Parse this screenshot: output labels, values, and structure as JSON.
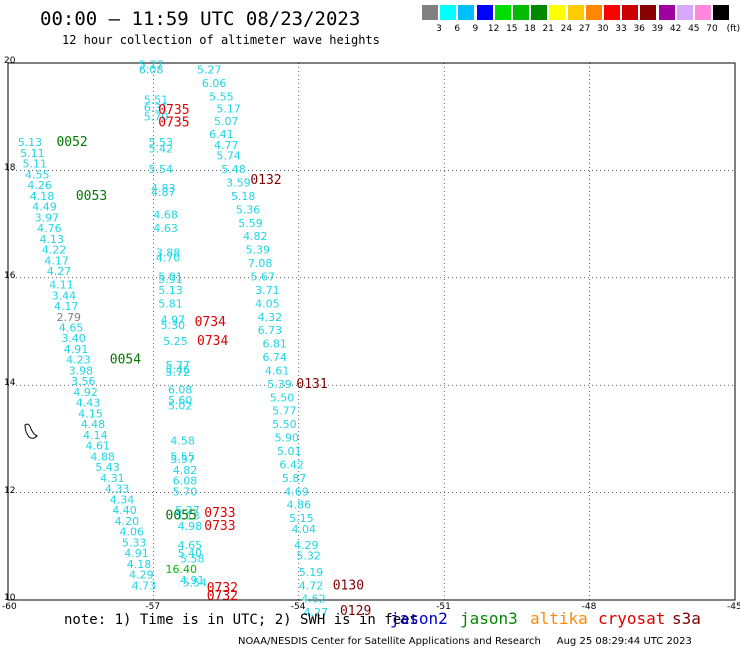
{
  "header": {
    "title": "00:00 – 11:59 UTC 08/23/2023",
    "subtitle": "12 hour collection of altimeter wave heights"
  },
  "color_scale": {
    "unit": "(ft)",
    "bins": [
      {
        "label": "3",
        "color": "#808080"
      },
      {
        "label": "6",
        "color": "#00ffff"
      },
      {
        "label": "9",
        "color": "#00bfff"
      },
      {
        "label": "12",
        "color": "#0000ff"
      },
      {
        "label": "15",
        "color": "#00dd00"
      },
      {
        "label": "18",
        "color": "#00bb00"
      },
      {
        "label": "21",
        "color": "#008800"
      },
      {
        "label": "24",
        "color": "#ffff00"
      },
      {
        "label": "27",
        "color": "#ffcc00"
      },
      {
        "label": "30",
        "color": "#ff8800"
      },
      {
        "label": "33",
        "color": "#ff0000"
      },
      {
        "label": "36",
        "color": "#cc0000"
      },
      {
        "label": "39",
        "color": "#880000"
      },
      {
        "label": "42",
        "color": "#a000a0"
      },
      {
        "label": "45",
        "color": "#d8a8ff"
      },
      {
        "label": "70",
        "color": "#ff88dd"
      },
      {
        "label": "",
        "color": "#000000"
      }
    ]
  },
  "map": {
    "lon_range": [
      -60,
      -45
    ],
    "lat_range": [
      10,
      20
    ],
    "x_ticks": [
      "-60",
      "-57",
      "-54",
      "-51",
      "-48",
      "-45"
    ],
    "y_ticks": [
      "20",
      "18",
      "16",
      "14",
      "12",
      "10"
    ]
  },
  "chart_data": {
    "type": "scatter",
    "x_unit": "degrees longitude",
    "y_unit": "degrees latitude",
    "point_colors": {
      "cyan": "#1fd6e6",
      "gray": "#808080"
    },
    "points": [
      {
        "lon": -57.3,
        "lat": 19.9,
        "v": "5.77",
        "c": "cyan"
      },
      {
        "lon": -57.3,
        "lat": 19.8,
        "v": "6.08",
        "c": "cyan"
      },
      {
        "lon": -56.1,
        "lat": 19.8,
        "v": "5.27",
        "c": "cyan"
      },
      {
        "lon": -56.0,
        "lat": 19.55,
        "v": "6.06",
        "c": "cyan"
      },
      {
        "lon": -55.85,
        "lat": 19.3,
        "v": "5.55",
        "c": "cyan"
      },
      {
        "lon": -57.2,
        "lat": 19.25,
        "v": "5.51",
        "c": "cyan"
      },
      {
        "lon": -57.2,
        "lat": 19.1,
        "v": "6.31",
        "c": "cyan"
      },
      {
        "lon": -55.7,
        "lat": 19.08,
        "v": "5.17",
        "c": "cyan"
      },
      {
        "lon": -57.2,
        "lat": 18.93,
        "v": "5.70",
        "c": "cyan"
      },
      {
        "lon": -55.75,
        "lat": 18.85,
        "v": "5.07",
        "c": "cyan"
      },
      {
        "lon": -55.85,
        "lat": 18.6,
        "v": "6.41",
        "c": "cyan"
      },
      {
        "lon": -57.1,
        "lat": 18.45,
        "v": "5.53",
        "c": "cyan"
      },
      {
        "lon": -57.1,
        "lat": 18.33,
        "v": "5.42",
        "c": "cyan"
      },
      {
        "lon": -55.75,
        "lat": 18.4,
        "v": "4.77",
        "c": "cyan"
      },
      {
        "lon": -55.7,
        "lat": 18.2,
        "v": "5.74",
        "c": "cyan"
      },
      {
        "lon": -57.1,
        "lat": 17.95,
        "v": "5.54",
        "c": "cyan"
      },
      {
        "lon": -55.6,
        "lat": 17.95,
        "v": "5.48",
        "c": "cyan"
      },
      {
        "lon": -55.5,
        "lat": 17.7,
        "v": "3.59",
        "c": "cyan"
      },
      {
        "lon": -57.05,
        "lat": 17.6,
        "v": "4.83",
        "c": "cyan"
      },
      {
        "lon": -57.05,
        "lat": 17.52,
        "v": "4.87",
        "c": "cyan"
      },
      {
        "lon": -55.4,
        "lat": 17.45,
        "v": "5.18",
        "c": "cyan"
      },
      {
        "lon": -55.3,
        "lat": 17.2,
        "v": "5.36",
        "c": "cyan"
      },
      {
        "lon": -57.0,
        "lat": 17.1,
        "v": "4.68",
        "c": "cyan"
      },
      {
        "lon": -55.25,
        "lat": 16.95,
        "v": "5.59",
        "c": "cyan"
      },
      {
        "lon": -57.0,
        "lat": 16.85,
        "v": "4.63",
        "c": "cyan"
      },
      {
        "lon": -55.15,
        "lat": 16.7,
        "v": "4.82",
        "c": "cyan"
      },
      {
        "lon": -56.95,
        "lat": 16.4,
        "v": "3.88",
        "c": "cyan"
      },
      {
        "lon": -55.1,
        "lat": 16.45,
        "v": "5.39",
        "c": "cyan"
      },
      {
        "lon": -56.95,
        "lat": 16.3,
        "v": "4.70",
        "c": "cyan"
      },
      {
        "lon": -55.05,
        "lat": 16.2,
        "v": "7.08",
        "c": "cyan"
      },
      {
        "lon": -56.9,
        "lat": 15.95,
        "v": "5.01",
        "c": "cyan"
      },
      {
        "lon": -56.9,
        "lat": 15.9,
        "v": "5.91",
        "c": "cyan"
      },
      {
        "lon": -55.0,
        "lat": 15.95,
        "v": "5.67",
        "c": "cyan"
      },
      {
        "lon": -56.9,
        "lat": 15.7,
        "v": "5.13",
        "c": "cyan"
      },
      {
        "lon": -54.9,
        "lat": 15.7,
        "v": "3.71",
        "c": "cyan"
      },
      {
        "lon": -56.9,
        "lat": 15.45,
        "v": "5.81",
        "c": "cyan"
      },
      {
        "lon": -54.9,
        "lat": 15.45,
        "v": "4.05",
        "c": "cyan"
      },
      {
        "lon": -56.85,
        "lat": 15.15,
        "v": "4.97",
        "c": "cyan"
      },
      {
        "lon": -54.85,
        "lat": 15.2,
        "v": "4.32",
        "c": "cyan"
      },
      {
        "lon": -56.85,
        "lat": 15.05,
        "v": "5.30",
        "c": "cyan"
      },
      {
        "lon": -54.85,
        "lat": 14.95,
        "v": "6.73",
        "c": "cyan"
      },
      {
        "lon": -56.8,
        "lat": 14.75,
        "v": "5.25",
        "c": "cyan"
      },
      {
        "lon": -54.75,
        "lat": 14.7,
        "v": "6.81",
        "c": "cyan"
      },
      {
        "lon": -54.75,
        "lat": 14.45,
        "v": "6.74",
        "c": "cyan"
      },
      {
        "lon": -56.75,
        "lat": 14.3,
        "v": "5.77",
        "c": "cyan"
      },
      {
        "lon": -56.75,
        "lat": 14.22,
        "v": "5.46",
        "c": "cyan"
      },
      {
        "lon": -56.75,
        "lat": 14.17,
        "v": "5.72",
        "c": "cyan"
      },
      {
        "lon": -54.7,
        "lat": 14.2,
        "v": "4.61",
        "c": "cyan"
      },
      {
        "lon": -54.65,
        "lat": 13.95,
        "v": "5.39",
        "c": "cyan"
      },
      {
        "lon": -56.7,
        "lat": 13.85,
        "v": "6.08",
        "c": "cyan"
      },
      {
        "lon": -54.6,
        "lat": 13.7,
        "v": "5.50",
        "c": "cyan"
      },
      {
        "lon": -56.7,
        "lat": 13.65,
        "v": "5.60",
        "c": "cyan"
      },
      {
        "lon": -56.7,
        "lat": 13.55,
        "v": "5.02",
        "c": "cyan"
      },
      {
        "lon": -54.55,
        "lat": 13.45,
        "v": "5.77",
        "c": "cyan"
      },
      {
        "lon": -54.55,
        "lat": 13.2,
        "v": "5.50",
        "c": "cyan"
      },
      {
        "lon": -54.5,
        "lat": 12.95,
        "v": "5.90",
        "c": "cyan"
      },
      {
        "lon": -56.65,
        "lat": 12.9,
        "v": "4.58",
        "c": "cyan"
      },
      {
        "lon": -54.45,
        "lat": 12.7,
        "v": "5.01",
        "c": "cyan"
      },
      {
        "lon": -56.65,
        "lat": 12.6,
        "v": "5.55",
        "c": "cyan"
      },
      {
        "lon": -56.65,
        "lat": 12.55,
        "v": "5.57",
        "c": "cyan"
      },
      {
        "lon": -54.4,
        "lat": 12.45,
        "v": "6.42",
        "c": "cyan"
      },
      {
        "lon": -56.6,
        "lat": 12.35,
        "v": "4.82",
        "c": "cyan"
      },
      {
        "lon": -54.35,
        "lat": 12.2,
        "v": "5.87",
        "c": "cyan"
      },
      {
        "lon": -56.6,
        "lat": 12.15,
        "v": "6.08",
        "c": "cyan"
      },
      {
        "lon": -56.6,
        "lat": 11.95,
        "v": "5.70",
        "c": "cyan"
      },
      {
        "lon": -54.3,
        "lat": 11.95,
        "v": "4.69",
        "c": "cyan"
      },
      {
        "lon": -54.25,
        "lat": 11.7,
        "v": "4.86",
        "c": "cyan"
      },
      {
        "lon": -56.55,
        "lat": 11.6,
        "v": "5.27",
        "c": "cyan"
      },
      {
        "lon": -56.55,
        "lat": 11.5,
        "v": "5.13",
        "c": "cyan"
      },
      {
        "lon": -54.2,
        "lat": 11.45,
        "v": "5.15",
        "c": "cyan"
      },
      {
        "lon": -56.5,
        "lat": 11.3,
        "v": "4.98",
        "c": "cyan"
      },
      {
        "lon": -54.15,
        "lat": 11.25,
        "v": "4.04",
        "c": "cyan"
      },
      {
        "lon": -54.1,
        "lat": 10.95,
        "v": "4.29",
        "c": "cyan"
      },
      {
        "lon": -56.5,
        "lat": 10.95,
        "v": "4.65",
        "c": "cyan"
      },
      {
        "lon": -56.5,
        "lat": 10.8,
        "v": "5.40",
        "c": "cyan"
      },
      {
        "lon": -54.05,
        "lat": 10.75,
        "v": "5.32",
        "c": "cyan"
      },
      {
        "lon": -56.45,
        "lat": 10.7,
        "v": "5.58",
        "c": "cyan"
      },
      {
        "lon": -54.0,
        "lat": 10.45,
        "v": "5.19",
        "c": "cyan"
      },
      {
        "lon": -54.0,
        "lat": 10.2,
        "v": "4.72",
        "c": "cyan"
      },
      {
        "lon": -56.45,
        "lat": 10.3,
        "v": "4.91",
        "c": "cyan"
      },
      {
        "lon": -56.4,
        "lat": 10.25,
        "v": "5.54",
        "c": "cyan"
      },
      {
        "lon": -53.95,
        "lat": 9.95,
        "v": "4.62",
        "c": "cyan"
      },
      {
        "lon": -53.9,
        "lat": 9.7,
        "v": "4.27",
        "c": "cyan"
      },
      {
        "lon": -59.8,
        "lat": 18.45,
        "v": "5.13",
        "c": "cyan"
      },
      {
        "lon": -59.75,
        "lat": 18.25,
        "v": "5.11",
        "c": "cyan"
      },
      {
        "lon": -59.7,
        "lat": 18.05,
        "v": "5.11",
        "c": "cyan"
      },
      {
        "lon": -59.65,
        "lat": 17.85,
        "v": "4.55",
        "c": "cyan"
      },
      {
        "lon": -59.6,
        "lat": 17.65,
        "v": "4.26",
        "c": "cyan"
      },
      {
        "lon": -59.55,
        "lat": 17.45,
        "v": "4.18",
        "c": "cyan"
      },
      {
        "lon": -59.5,
        "lat": 17.25,
        "v": "4.49",
        "c": "cyan"
      },
      {
        "lon": -59.45,
        "lat": 17.05,
        "v": "3.97",
        "c": "cyan"
      },
      {
        "lon": -59.4,
        "lat": 16.85,
        "v": "4.76",
        "c": "cyan"
      },
      {
        "lon": -59.35,
        "lat": 16.65,
        "v": "4.13",
        "c": "cyan"
      },
      {
        "lon": -59.3,
        "lat": 16.45,
        "v": "4.22",
        "c": "cyan"
      },
      {
        "lon": -59.25,
        "lat": 16.25,
        "v": "4.17",
        "c": "cyan"
      },
      {
        "lon": -59.2,
        "lat": 16.05,
        "v": "4.27",
        "c": "cyan"
      },
      {
        "lon": -59.15,
        "lat": 15.8,
        "v": "4.11",
        "c": "cyan"
      },
      {
        "lon": -59.1,
        "lat": 15.6,
        "v": "3.44",
        "c": "cyan"
      },
      {
        "lon": -59.05,
        "lat": 15.4,
        "v": "4.17",
        "c": "cyan"
      },
      {
        "lon": -59.0,
        "lat": 15.2,
        "v": "2.79",
        "c": "gray"
      },
      {
        "lon": -58.95,
        "lat": 15.0,
        "v": "4.65",
        "c": "cyan"
      },
      {
        "lon": -58.9,
        "lat": 14.8,
        "v": "3.40",
        "c": "cyan"
      },
      {
        "lon": -58.85,
        "lat": 14.6,
        "v": "4.91",
        "c": "cyan"
      },
      {
        "lon": -58.8,
        "lat": 14.4,
        "v": "4.23",
        "c": "cyan"
      },
      {
        "lon": -58.75,
        "lat": 14.2,
        "v": "3.98",
        "c": "cyan"
      },
      {
        "lon": -58.7,
        "lat": 14.0,
        "v": "3.56",
        "c": "cyan"
      },
      {
        "lon": -58.65,
        "lat": 13.8,
        "v": "4.92",
        "c": "cyan"
      },
      {
        "lon": -58.6,
        "lat": 13.6,
        "v": "4.43",
        "c": "cyan"
      },
      {
        "lon": -58.55,
        "lat": 13.4,
        "v": "4.15",
        "c": "cyan"
      },
      {
        "lon": -58.5,
        "lat": 13.2,
        "v": "4.48",
        "c": "cyan"
      },
      {
        "lon": -58.45,
        "lat": 13.0,
        "v": "4.14",
        "c": "cyan"
      },
      {
        "lon": -58.4,
        "lat": 12.8,
        "v": "4.61",
        "c": "cyan"
      },
      {
        "lon": -58.3,
        "lat": 12.6,
        "v": "4.88",
        "c": "cyan"
      },
      {
        "lon": -58.2,
        "lat": 12.4,
        "v": "5.43",
        "c": "cyan"
      },
      {
        "lon": -58.1,
        "lat": 12.2,
        "v": "4.31",
        "c": "cyan"
      },
      {
        "lon": -58.0,
        "lat": 12.0,
        "v": "4.33",
        "c": "cyan"
      },
      {
        "lon": -57.9,
        "lat": 11.8,
        "v": "4.34",
        "c": "cyan"
      },
      {
        "lon": -57.85,
        "lat": 11.6,
        "v": "4.40",
        "c": "cyan"
      },
      {
        "lon": -57.8,
        "lat": 11.4,
        "v": "4.20",
        "c": "cyan"
      },
      {
        "lon": -57.7,
        "lat": 11.2,
        "v": "4.06",
        "c": "cyan"
      },
      {
        "lon": -57.65,
        "lat": 11.0,
        "v": "5.33",
        "c": "cyan"
      },
      {
        "lon": -57.6,
        "lat": 10.8,
        "v": "4.91",
        "c": "cyan"
      },
      {
        "lon": -57.55,
        "lat": 10.6,
        "v": "4.18",
        "c": "cyan"
      },
      {
        "lon": -57.5,
        "lat": 10.4,
        "v": "4.29",
        "c": "cyan"
      },
      {
        "lon": -57.45,
        "lat": 10.2,
        "v": "4.73",
        "c": "cyan"
      },
      {
        "lon": -56.75,
        "lat": 10.5,
        "v": "16.40",
        "c": "green"
      }
    ],
    "pass_labels": [
      {
        "lon": -56.9,
        "lat": 19.05,
        "text": "0735",
        "color": "red"
      },
      {
        "lon": -56.9,
        "lat": 18.82,
        "text": "0735",
        "color": "red"
      },
      {
        "lon": -55.0,
        "lat": 17.75,
        "text": "0132",
        "color": "darkred"
      },
      {
        "lon": -59.0,
        "lat": 18.45,
        "text": "0052",
        "color": "green"
      },
      {
        "lon": -58.6,
        "lat": 17.45,
        "text": "0053",
        "color": "green"
      },
      {
        "lon": -56.15,
        "lat": 15.1,
        "text": "0734",
        "color": "red"
      },
      {
        "lon": -56.1,
        "lat": 14.75,
        "text": "0734",
        "color": "red"
      },
      {
        "lon": -57.9,
        "lat": 14.4,
        "text": "0054",
        "color": "green"
      },
      {
        "lon": -54.05,
        "lat": 13.95,
        "text": "0131",
        "color": "darkred"
      },
      {
        "lon": -56.75,
        "lat": 11.5,
        "text": "0055",
        "color": "green"
      },
      {
        "lon": -55.95,
        "lat": 11.55,
        "text": "0733",
        "color": "red"
      },
      {
        "lon": -55.95,
        "lat": 11.3,
        "text": "0733",
        "color": "red"
      },
      {
        "lon": -53.3,
        "lat": 10.2,
        "text": "0130",
        "color": "darkred"
      },
      {
        "lon": -55.9,
        "lat": 10.15,
        "text": "0732",
        "color": "red"
      },
      {
        "lon": -55.9,
        "lat": 10.0,
        "text": "0732",
        "color": "red"
      },
      {
        "lon": -53.15,
        "lat": 9.72,
        "text": "0129",
        "color": "darkred"
      }
    ],
    "label_colors": {
      "red": "#dd0000",
      "darkred": "#800000",
      "green": "#007700"
    }
  },
  "footer": {
    "note": "note: 1) Time is in UTC; 2) SWH is in feet",
    "legend": [
      {
        "label": "jason2",
        "color": "#0000cc"
      },
      {
        "label": "jason3",
        "color": "#008800"
      },
      {
        "label": "altika",
        "color": "#ff8800"
      },
      {
        "label": "cryosat",
        "color": "#dd0000"
      },
      {
        "label": "s3a",
        "color": "#800000"
      }
    ],
    "credit": "NOAA/NESDIS Center for Satellite Applications and Research     Aug 25 08:29:44 UTC 2023"
  }
}
